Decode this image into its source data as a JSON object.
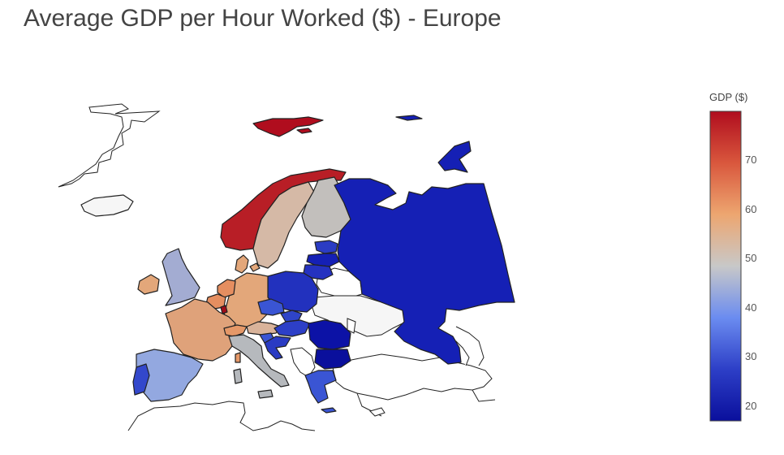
{
  "title": "Average GDP per Hour Worked ($) - Europe",
  "colorbar": {
    "title": "GDP ($)",
    "min": 17,
    "max": 80,
    "ticks": [
      "20",
      "30",
      "40",
      "50",
      "60",
      "70"
    ],
    "colorscale": [
      "#0a0f9c",
      "#2d3fc7",
      "#6b8cf0",
      "#c8c8c8",
      "#eda670",
      "#d9573d",
      "#b00d1e"
    ]
  },
  "chart_data": {
    "type": "choropleth",
    "region": "Europe",
    "value_label": "GDP ($)",
    "countries": [
      {
        "name": "Norway",
        "value": 76
      },
      {
        "name": "Svalbard",
        "value": 76
      },
      {
        "name": "Ireland",
        "value": 57
      },
      {
        "name": "Luxembourg",
        "value": 77
      },
      {
        "name": "Denmark",
        "value": 58
      },
      {
        "name": "Belgium",
        "value": 64
      },
      {
        "name": "Netherlands",
        "value": 63
      },
      {
        "name": "Germany",
        "value": 59
      },
      {
        "name": "France",
        "value": 58
      },
      {
        "name": "Sweden",
        "value": 54
      },
      {
        "name": "Austria",
        "value": 57
      },
      {
        "name": "Switzerland",
        "value": 62
      },
      {
        "name": "Finland",
        "value": 51
      },
      {
        "name": "United Kingdom",
        "value": 46
      },
      {
        "name": "Iceland",
        "value": 49
      },
      {
        "name": "Italy",
        "value": 48
      },
      {
        "name": "Spain",
        "value": 43
      },
      {
        "name": "Czechia",
        "value": 36
      },
      {
        "name": "Slovenia",
        "value": 35
      },
      {
        "name": "Slovakia",
        "value": 33
      },
      {
        "name": "Greece",
        "value": 34
      },
      {
        "name": "Portugal",
        "value": 30
      },
      {
        "name": "Estonia",
        "value": 29
      },
      {
        "name": "Lithuania",
        "value": 26
      },
      {
        "name": "Hungary",
        "value": 27
      },
      {
        "name": "Poland",
        "value": 25
      },
      {
        "name": "Croatia",
        "value": 27
      },
      {
        "name": "Latvia",
        "value": 24
      },
      {
        "name": "Romania",
        "value": 22
      },
      {
        "name": "Russia",
        "value": 24
      },
      {
        "name": "Bulgaria",
        "value": 18
      }
    ]
  }
}
